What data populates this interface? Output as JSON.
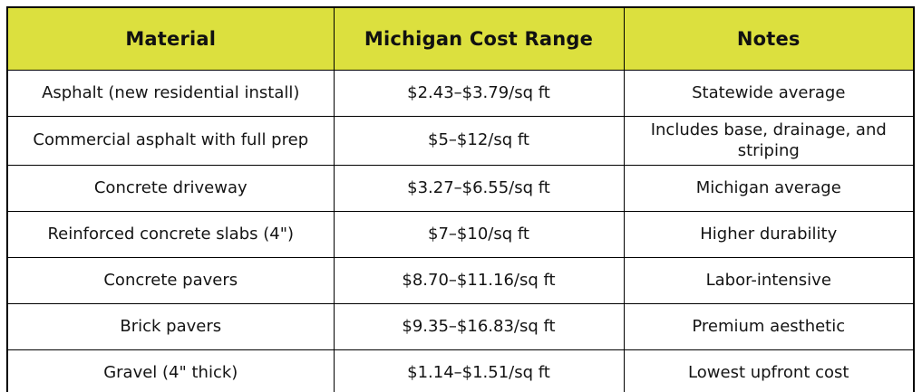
{
  "table": {
    "headers": [
      "Material",
      "Michigan Cost Range",
      "Notes"
    ],
    "rows": [
      [
        "Asphalt (new residential install)",
        "$2.43–$3.79/sq ft",
        "Statewide average"
      ],
      [
        "Commercial asphalt with full prep",
        "$5–$12/sq ft",
        "Includes base, drainage, and striping"
      ],
      [
        "Concrete driveway",
        "$3.27–$6.55/sq ft",
        "Michigan average"
      ],
      [
        "Reinforced concrete slabs (4\")",
        "$7–$10/sq ft",
        "Higher durability"
      ],
      [
        "Concrete pavers",
        "$8.70–$11.16/sq ft",
        "Labor-intensive"
      ],
      [
        "Brick pavers",
        "$9.35–$16.83/sq ft",
        "Premium aesthetic"
      ],
      [
        "Gravel (4\" thick)",
        "$1.14–$1.51/sq ft",
        "Lowest upfront cost"
      ]
    ],
    "colors": {
      "header_bg": "#dce03e",
      "header_text": "#111111",
      "body_text": "#141414",
      "border": "#000000",
      "row_bg": "#ffffff"
    }
  },
  "chart_data": {
    "type": "table",
    "title": "",
    "columns": [
      "Material",
      "Michigan Cost Range",
      "Notes"
    ],
    "rows": [
      {
        "material": "Asphalt (new residential install)",
        "cost_range": "$2.43–$3.79/sq ft",
        "cost_low_usd_per_sqft": 2.43,
        "cost_high_usd_per_sqft": 3.79,
        "notes": "Statewide average"
      },
      {
        "material": "Commercial asphalt with full prep",
        "cost_range": "$5–$12/sq ft",
        "cost_low_usd_per_sqft": 5,
        "cost_high_usd_per_sqft": 12,
        "notes": "Includes base, drainage, and striping"
      },
      {
        "material": "Concrete driveway",
        "cost_range": "$3.27–$6.55/sq ft",
        "cost_low_usd_per_sqft": 3.27,
        "cost_high_usd_per_sqft": 6.55,
        "notes": "Michigan average"
      },
      {
        "material": "Reinforced concrete slabs (4\")",
        "cost_range": "$7–$10/sq ft",
        "cost_low_usd_per_sqft": 7,
        "cost_high_usd_per_sqft": 10,
        "notes": "Higher durability"
      },
      {
        "material": "Concrete pavers",
        "cost_range": "$8.70–$11.16/sq ft",
        "cost_low_usd_per_sqft": 8.7,
        "cost_high_usd_per_sqft": 11.16,
        "notes": "Labor-intensive"
      },
      {
        "material": "Brick pavers",
        "cost_range": "$9.35–$16.83/sq ft",
        "cost_low_usd_per_sqft": 9.35,
        "cost_high_usd_per_sqft": 16.83,
        "notes": "Premium aesthetic"
      },
      {
        "material": "Gravel (4\" thick)",
        "cost_range": "$1.14–$1.51/sq ft",
        "cost_low_usd_per_sqft": 1.14,
        "cost_high_usd_per_sqft": 1.51,
        "notes": "Lowest upfront cost"
      }
    ]
  }
}
